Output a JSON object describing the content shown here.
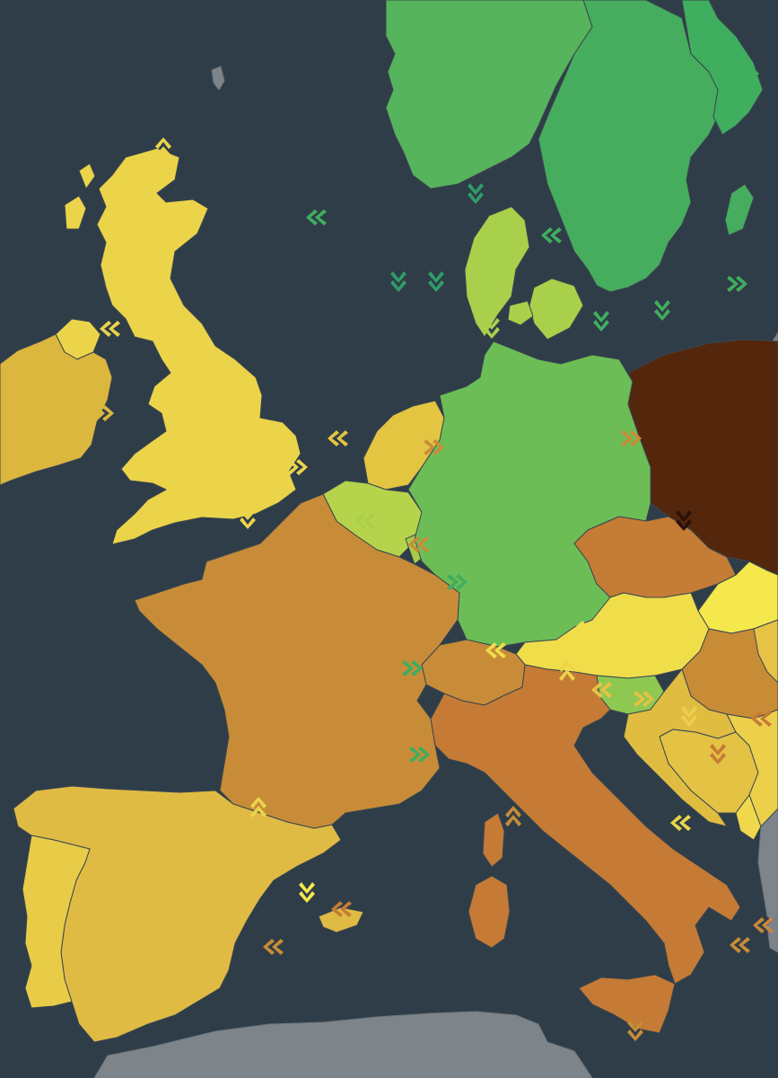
{
  "map": {
    "type": "choropleth-flow-map",
    "colors": {
      "sea": "#2f3d48",
      "non_data_land": "#7d858b"
    },
    "countries": [
      {
        "id": "norway",
        "color": "#56b45c"
      },
      {
        "id": "sweden",
        "color": "#46ad5e"
      },
      {
        "id": "finland",
        "color": "#3fae5e"
      },
      {
        "id": "denmark",
        "color": "#a9d04a"
      },
      {
        "id": "united-kingdom",
        "color": "#ecd44a"
      },
      {
        "id": "ireland",
        "color": "#dcb73e"
      },
      {
        "id": "netherlands",
        "color": "#e4c542"
      },
      {
        "id": "belgium",
        "color": "#b6d34c"
      },
      {
        "id": "luxembourg",
        "color": "#a9cc48"
      },
      {
        "id": "france",
        "color": "#6dbd56"
      },
      {
        "id": "germany",
        "color": "#c88c38"
      },
      {
        "id": "poland",
        "color": "#54260c"
      },
      {
        "id": "czechia",
        "color": "#c57c35"
      },
      {
        "id": "austria",
        "color": "#f0dd4a"
      },
      {
        "id": "switzerland",
        "color": "#8fc850"
      },
      {
        "id": "italy",
        "color": "#c88c36"
      },
      {
        "id": "spain",
        "color": "#f4e84c"
      },
      {
        "id": "portugal",
        "color": "#e0bd40"
      },
      {
        "id": "slovenia",
        "color": "#e6c247"
      },
      {
        "id": "hungary",
        "color": "#e3c244"
      },
      {
        "id": "slovakia",
        "color": "#ecd04a"
      },
      {
        "id": "croatia",
        "color": "#efd84b"
      },
      {
        "id": "bosnia-and-herzegovina",
        "color": "#c57b35"
      },
      {
        "id": "serbia",
        "color": "#e0bb44"
      },
      {
        "id": "romania",
        "color": "#e8cc48"
      },
      {
        "id": "montenegro",
        "color": "#c9893a"
      }
    ],
    "flow_arrows": [
      {
        "near": "uk-north",
        "color": "#ecd44a",
        "direction": "up"
      },
      {
        "near": "north-sea-west",
        "color": "#3fae5e",
        "direction": "left"
      },
      {
        "near": "north-sea-1",
        "color": "#2f9c6a",
        "direction": "down"
      },
      {
        "near": "north-sea-2",
        "color": "#2f9c6a",
        "direction": "down"
      },
      {
        "near": "skagerrak",
        "color": "#2f9c6a",
        "direction": "down"
      },
      {
        "near": "kattegat",
        "color": "#3fae5e",
        "direction": "left"
      },
      {
        "near": "finland-east",
        "color": "#3fae5e",
        "direction": "left"
      },
      {
        "near": "baltic-east",
        "color": "#3fae5e",
        "direction": "right"
      },
      {
        "near": "oresund",
        "color": "#3fae5e",
        "direction": "down"
      },
      {
        "near": "baltic-south",
        "color": "#3fae5e",
        "direction": "down"
      },
      {
        "near": "denmark-germany",
        "color": "#a9d04a",
        "direction": "down"
      },
      {
        "near": "irish-sea",
        "color": "#ecd44a",
        "direction": "left"
      },
      {
        "near": "ireland-uk",
        "color": "#dcb73e",
        "direction": "right"
      },
      {
        "near": "north-sea-nl",
        "color": "#e4c542",
        "direction": "left"
      },
      {
        "near": "uk-belgium",
        "color": "#ecd44a",
        "direction": "right"
      },
      {
        "near": "channel",
        "color": "#ecd44a",
        "direction": "down"
      },
      {
        "near": "belgium-france",
        "color": "#a9d04a",
        "direction": "left"
      },
      {
        "near": "germany-netherlands",
        "color": "#c88c38",
        "direction": "right"
      },
      {
        "near": "germany-belgium",
        "color": "#c88c38",
        "direction": "left"
      },
      {
        "near": "france-germany",
        "color": "#3fae5e",
        "direction": "right"
      },
      {
        "near": "france-switzerland",
        "color": "#3fae5e",
        "direction": "right"
      },
      {
        "near": "france-italy",
        "color": "#3fae5e",
        "direction": "right"
      },
      {
        "near": "france-spain",
        "color": "#ecd44a",
        "direction": "up"
      },
      {
        "near": "switzerland-austria",
        "color": "#f0dd4a",
        "direction": "left"
      },
      {
        "near": "austria-germany",
        "color": "#f0dd4a",
        "direction": "left"
      },
      {
        "near": "austria-italy",
        "color": "#ecd44a",
        "direction": "up"
      },
      {
        "near": "poland-czechia",
        "color": "#2a1208",
        "direction": "down"
      },
      {
        "near": "poland-germany",
        "color": "#c88c38",
        "direction": "right"
      },
      {
        "near": "czechia-austria",
        "color": "#c57c35",
        "direction": "down"
      },
      {
        "near": "slovenia-italy",
        "color": "#e6c247",
        "direction": "left"
      },
      {
        "near": "hungary-croatia",
        "color": "#ecd04a",
        "direction": "down"
      },
      {
        "near": "croatia-slovenia",
        "color": "#e3c244",
        "direction": "right"
      },
      {
        "near": "bosnia",
        "color": "#c57b35",
        "direction": "down"
      },
      {
        "near": "adriatic",
        "color": "#ecd44a",
        "direction": "left"
      },
      {
        "near": "ionian",
        "color": "#c88c36",
        "direction": "left"
      },
      {
        "near": "corsica",
        "color": "#c88c36",
        "direction": "up"
      },
      {
        "near": "balearic",
        "color": "#f4e84c",
        "direction": "down"
      },
      {
        "near": "sardinia-spain",
        "color": "#c88c36",
        "direction": "left"
      },
      {
        "near": "tyrrhenian",
        "color": "#c57c35",
        "direction": "left"
      },
      {
        "near": "sicily",
        "color": "#c88c36",
        "direction": "down"
      },
      {
        "near": "serbia",
        "color": "#c57b35",
        "direction": "left"
      },
      {
        "near": "montenegro",
        "color": "#c9893a",
        "direction": "left"
      }
    ]
  }
}
